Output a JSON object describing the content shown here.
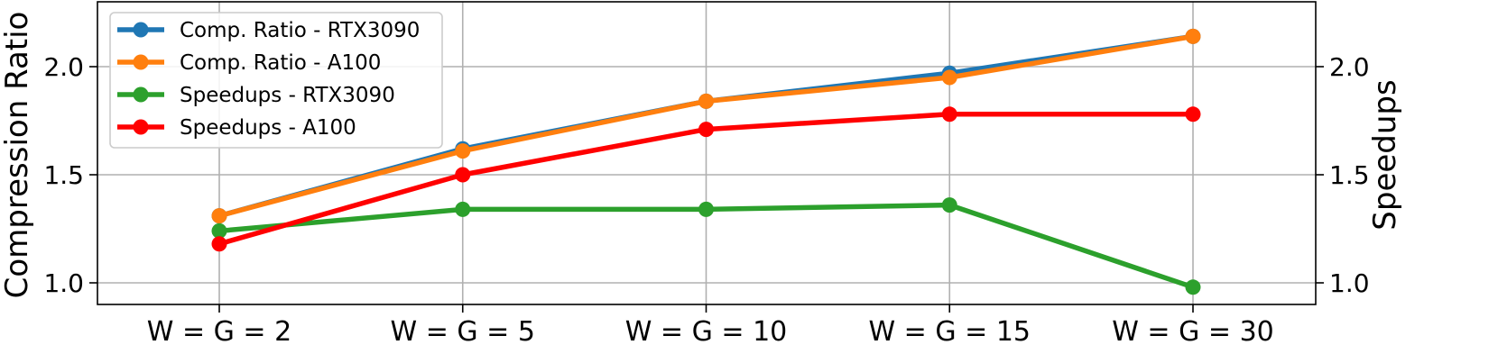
{
  "chart_data": {
    "type": "line",
    "categories": [
      "W = G = 2",
      "W = G = 5",
      "W = G = 10",
      "W = G = 15",
      "W = G = 30"
    ],
    "left_axis": {
      "label": "Compression Ratio",
      "ylim": [
        0.9,
        2.3
      ],
      "ticks": [
        1.0,
        1.5,
        2.0
      ],
      "tick_labels": [
        "1.0",
        "1.5",
        "2.0"
      ]
    },
    "right_axis": {
      "label": "Speedups",
      "ylim": [
        0.9,
        2.3
      ],
      "ticks": [
        1.0,
        1.5,
        2.0
      ],
      "tick_labels": [
        "1.0",
        "1.5",
        "2.0"
      ]
    },
    "grid": true,
    "legend_position": "top-left",
    "series": [
      {
        "name": "Comp. Ratio - RTX3090",
        "axis": "left",
        "color": "#1f77b4",
        "values": [
          1.31,
          1.62,
          1.84,
          1.97,
          2.14
        ]
      },
      {
        "name": "Comp. Ratio - A100",
        "axis": "left",
        "color": "#ff7f0e",
        "values": [
          1.31,
          1.61,
          1.84,
          1.95,
          2.14
        ]
      },
      {
        "name": "Speedups - RTX3090",
        "axis": "right",
        "color": "#2ca02c",
        "values": [
          1.24,
          1.34,
          1.34,
          1.36,
          0.98
        ]
      },
      {
        "name": "Speedups - A100",
        "axis": "right",
        "color": "#ff0000",
        "values": [
          1.18,
          1.5,
          1.71,
          1.78,
          1.78
        ]
      }
    ]
  }
}
